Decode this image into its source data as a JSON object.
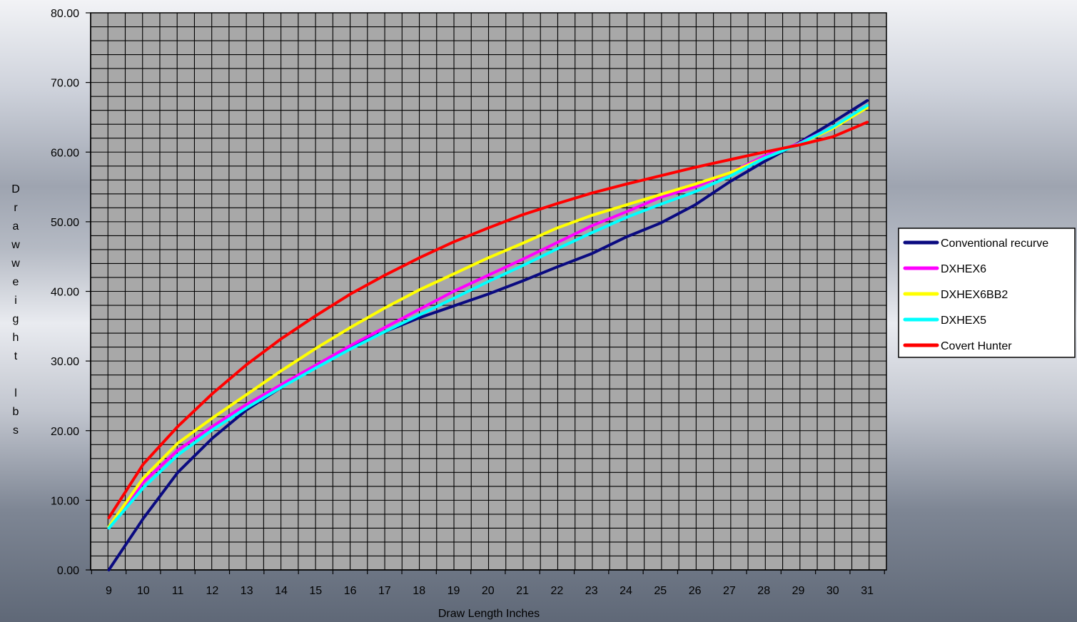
{
  "chart_data": {
    "type": "line",
    "title": "",
    "xlabel": "Draw Length Inches",
    "ylabel": "Drawweight lbs",
    "ylabel_lines": [
      "D",
      "r",
      "a",
      "w",
      "w",
      "e",
      "i",
      "g",
      "h",
      "t",
      "",
      "l",
      "b",
      "s"
    ],
    "x": [
      9,
      10,
      11,
      12,
      13,
      14,
      15,
      16,
      17,
      18,
      19,
      20,
      21,
      22,
      23,
      24,
      25,
      26,
      27,
      28,
      29,
      30,
      31
    ],
    "xlim": [
      9,
      31
    ],
    "ylim": [
      0,
      80
    ],
    "ytick_labels": [
      "0.00",
      "10.00",
      "20.00",
      "30.00",
      "40.00",
      "50.00",
      "60.00",
      "70.00",
      "80.00"
    ],
    "grid": true,
    "legend_position": "right",
    "plot_background": "#a8a8a8",
    "series": [
      {
        "name": "Conventional recurve",
        "color": "#0a0a80",
        "values": [
          0.0,
          7.4,
          14.0,
          18.9,
          23.0,
          26.2,
          29.2,
          31.9,
          34.2,
          36.2,
          37.9,
          39.6,
          41.5,
          43.5,
          45.4,
          47.8,
          49.8,
          52.4,
          55.7,
          58.6,
          61.3,
          64.3,
          67.4
        ]
      },
      {
        "name": "DXHEX6",
        "color": "#ff00ff",
        "values": [
          6.0,
          12.6,
          17.2,
          20.6,
          23.8,
          26.6,
          29.4,
          32.2,
          34.8,
          37.4,
          40.0,
          42.3,
          44.6,
          47.0,
          49.4,
          51.4,
          53.5,
          55.0,
          57.0,
          59.4,
          61.2,
          63.6,
          66.7
        ]
      },
      {
        "name": "DXHEX6BB2",
        "color": "#ffff00",
        "values": [
          6.2,
          13.2,
          18.2,
          21.8,
          25.2,
          28.6,
          31.8,
          34.8,
          37.6,
          40.2,
          42.5,
          44.8,
          46.9,
          49.1,
          50.9,
          52.4,
          53.9,
          55.4,
          57.0,
          59.1,
          61.1,
          63.4,
          66.4
        ]
      },
      {
        "name": "DXHEX5",
        "color": "#00ffff",
        "values": [
          6.0,
          11.8,
          16.5,
          20.1,
          23.3,
          26.2,
          29.0,
          31.7,
          34.2,
          36.6,
          39.0,
          41.4,
          43.7,
          46.1,
          48.4,
          50.6,
          52.5,
          54.3,
          56.5,
          59.1,
          61.1,
          63.6,
          66.7
        ]
      },
      {
        "name": "Covert Hunter",
        "color": "#ff0000",
        "values": [
          7.5,
          15.2,
          20.6,
          25.3,
          29.5,
          33.2,
          36.5,
          39.6,
          42.3,
          44.8,
          47.1,
          49.1,
          51.0,
          52.6,
          54.1,
          55.4,
          56.6,
          57.8,
          58.9,
          60.0,
          61.0,
          62.2,
          64.3
        ]
      }
    ]
  }
}
